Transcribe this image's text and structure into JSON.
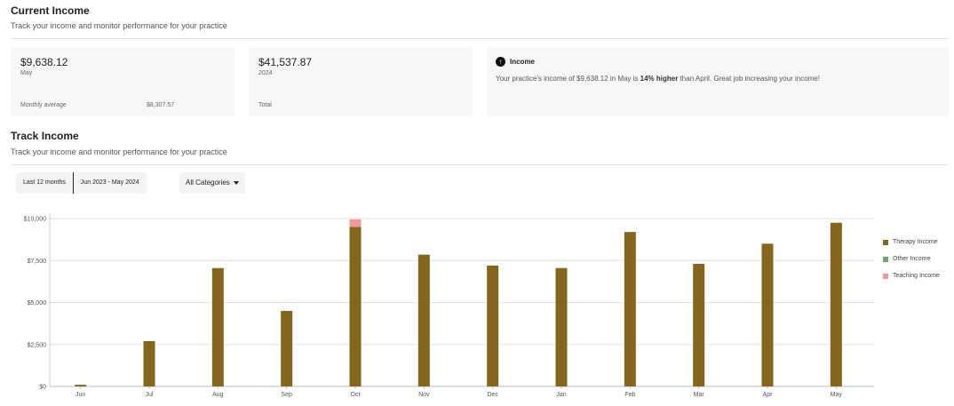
{
  "current_income": {
    "title": "Current Income",
    "subtitle": "Track your income and monitor performance for your practice"
  },
  "cards": {
    "monthly": {
      "amount": "$9,638.12",
      "period": "May",
      "avg_label": "Monthly average",
      "avg_value": "$8,307.57"
    },
    "yearly": {
      "amount": "$41,537.87",
      "period": "2024",
      "total_label": "Total"
    },
    "insight": {
      "title": "Income",
      "text_before": "Your practice's income of $9,638.12 in May is ",
      "text_bold": "14% higher",
      "text_after": " than April. Great job increasing your income!"
    }
  },
  "track_income": {
    "title": "Track Income",
    "subtitle": "Track your income and monitor performance for your practice"
  },
  "filters": {
    "range_preset": "Last 12 months",
    "range_dates": "Jun 2023 - May 2024",
    "category": "All Categories"
  },
  "chart_data": {
    "type": "bar",
    "stacked": true,
    "categories": [
      "Jun",
      "Jul",
      "Aug",
      "Sep",
      "Oct",
      "Nov",
      "Dec",
      "Jan",
      "Feb",
      "Mar",
      "Apr",
      "May"
    ],
    "series": [
      {
        "name": "Therapy Income",
        "color": "#86661f",
        "values": [
          100,
          2700,
          7050,
          4500,
          9500,
          7850,
          7200,
          7050,
          9200,
          7300,
          8500,
          9750
        ]
      },
      {
        "name": "Other Income",
        "color": "#6aaa64",
        "values": [
          0,
          0,
          0,
          0,
          0,
          0,
          0,
          0,
          0,
          0,
          0,
          0
        ]
      },
      {
        "name": "Teaching Income",
        "color": "#f19999",
        "values": [
          0,
          0,
          0,
          0,
          450,
          0,
          0,
          0,
          0,
          0,
          0,
          0
        ]
      }
    ],
    "yticks": [
      "$0",
      "$2,500",
      "$5,000",
      "$7,500",
      "$10,000"
    ],
    "ytick_values": [
      0,
      2500,
      5000,
      7500,
      10000
    ],
    "ylim": [
      0,
      10000
    ],
    "grid": true,
    "legend": "right"
  }
}
